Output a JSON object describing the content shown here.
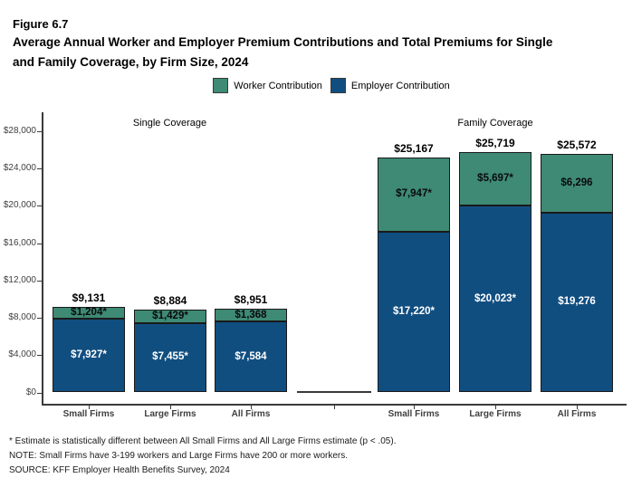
{
  "header": {
    "figure_label": "Figure 6.7",
    "title_line1": "Average Annual Worker and Employer Premium Contributions and Total Premiums for Single",
    "title_line2": "and Family Coverage, by Firm Size, 2024"
  },
  "legend": {
    "worker_label": "Worker Contribution",
    "employer_label": "Employer Contribution"
  },
  "colors": {
    "worker_green": "#3E8A74",
    "employer_blue": "#114E80",
    "bar_border": "#1a1a1a",
    "axis_gray": "#3a3a3a"
  },
  "chart_data": {
    "type": "bar",
    "stacked": true,
    "title": "Average Annual Worker and Employer Premium Contributions and Total Premiums for Single and Family Coverage, by Firm Size, 2024",
    "series_names": [
      "Worker Contribution",
      "Employer Contribution"
    ],
    "legend_position": "top",
    "grid": false,
    "y_axis": {
      "min": 0,
      "max": 28000,
      "step": 4000,
      "tick_values": [
        0,
        4000,
        8000,
        12000,
        16000,
        20000,
        24000,
        28000
      ],
      "tick_labels": [
        "$0",
        "$4,000",
        "$8,000",
        "$12,000",
        "$16,000",
        "$20,000",
        "$24,000",
        "$28,000"
      ]
    },
    "groups": [
      {
        "title": "Single Coverage",
        "bars": [
          {
            "category": "Small Firms",
            "total": 9131,
            "total_label": "$9,131",
            "worker": 1204,
            "worker_label": "$1,204*",
            "employer": 7927,
            "employer_label": "$7,927*"
          },
          {
            "category": "Large Firms",
            "total": 8884,
            "total_label": "$8,884",
            "worker": 1429,
            "worker_label": "$1,429*",
            "employer": 7455,
            "employer_label": "$7,455*"
          },
          {
            "category": "All Firms",
            "total": 8951,
            "total_label": "$8,951",
            "worker": 1368,
            "worker_label": "$1,368",
            "employer": 7584,
            "employer_label": "$7,584"
          }
        ]
      },
      {
        "title": "Family Coverage",
        "bars": [
          {
            "category": "Small Firms",
            "total": 25167,
            "total_label": "$25,167",
            "worker": 7947,
            "worker_label": "$7,947*",
            "employer": 17220,
            "employer_label": "$17,220*"
          },
          {
            "category": "Large Firms",
            "total": 25719,
            "total_label": "$25,719",
            "worker": 5697,
            "worker_label": "$5,697*",
            "employer": 20023,
            "employer_label": "$20,023*"
          },
          {
            "category": "All Firms",
            "total": 25572,
            "total_label": "$25,572",
            "worker": 6296,
            "worker_label": "$6,296",
            "employer": 19276,
            "employer_label": "$19,276"
          }
        ]
      }
    ]
  },
  "footnotes": {
    "asterisk": "* Estimate is statistically different between All Small Firms and All Large Firms estimate (p < .05).",
    "note": "NOTE: Small Firms have 3-199 workers and Large Firms have 200 or more workers.",
    "source": "SOURCE: KFF Employer Health Benefits Survey, 2024"
  }
}
